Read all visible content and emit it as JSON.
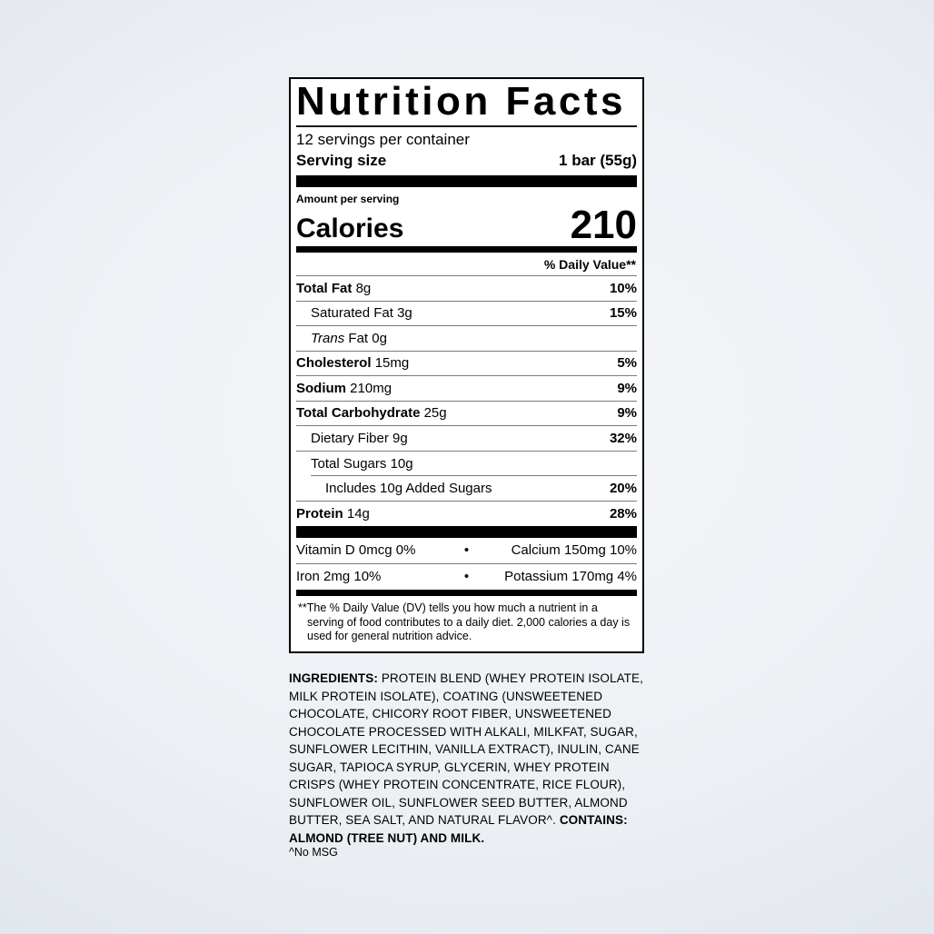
{
  "label": {
    "title": "Nutrition Facts",
    "servings_per_container": "12 servings per container",
    "serving_size_label": "Serving size",
    "serving_size_value": "1 bar (55g)",
    "amount_per_serving": "Amount per serving",
    "calories_label": "Calories",
    "calories_value": "210",
    "daily_value_header": "% Daily Value**",
    "nutrients": [
      {
        "name": "Total Fat",
        "amount": "8g",
        "dv": "10%"
      },
      {
        "name": "Saturated Fat",
        "amount": "3g",
        "dv": "15%"
      },
      {
        "name": "Trans",
        "amount": "Fat 0g",
        "dv": ""
      },
      {
        "name": "Cholesterol",
        "amount": "15mg",
        "dv": "5%"
      },
      {
        "name": "Sodium",
        "amount": "210mg",
        "dv": "9%"
      },
      {
        "name": "Total Carbohydrate",
        "amount": "25g",
        "dv": "9%"
      },
      {
        "name": "Dietary Fiber",
        "amount": "9g",
        "dv": "32%"
      },
      {
        "name": "Total Sugars",
        "amount": "10g",
        "dv": ""
      },
      {
        "name": "Includes 10g Added Sugars",
        "amount": "",
        "dv": "20%"
      },
      {
        "name": "Protein",
        "amount": "14g",
        "dv": "28%"
      }
    ],
    "micronutrients": [
      {
        "left": "Vitamin D 0mcg 0%",
        "bullet": "•",
        "right": "Calcium 150mg 10%"
      },
      {
        "left": "Iron 2mg 10%",
        "bullet": "•",
        "right": "Potassium 170mg 4%"
      }
    ],
    "footnote": "**The % Daily Value (DV) tells you how much a nutrient in a serving of food contributes to a daily diet. 2,000 calories a day is used for general nutrition advice."
  },
  "ingredients": {
    "label": "INGREDIENTS:",
    "text": " PROTEIN BLEND (WHEY PROTEIN ISOLATE, MILK PROTEIN ISOLATE), COATING (UNSWEETENED CHOCOLATE, CHICORY ROOT FIBER, UNSWEETENED CHOCOLATE PROCESSED WITH ALKALI, MILKFAT, SUGAR, SUNFLOWER LECITHIN, VANILLA EXTRACT), INULIN, CANE SUGAR, TAPIOCA SYRUP, GLYCERIN, WHEY PROTEIN CRISPS (WHEY PROTEIN CONCENTRATE, RICE FLOUR), SUNFLOWER OIL, SUNFLOWER SEED BUTTER, ALMOND BUTTER, SEA SALT, AND NATURAL FLAVOR^. ",
    "contains": "CONTAINS: ALMOND (TREE NUT) AND MILK.",
    "note": "^No MSG"
  },
  "colors": {
    "panel_background": "#ffffff",
    "text": "#000000",
    "hairline": "#7a7a7a",
    "page_edge": "#d5dbe4",
    "page_center": "#f5f7f9"
  }
}
